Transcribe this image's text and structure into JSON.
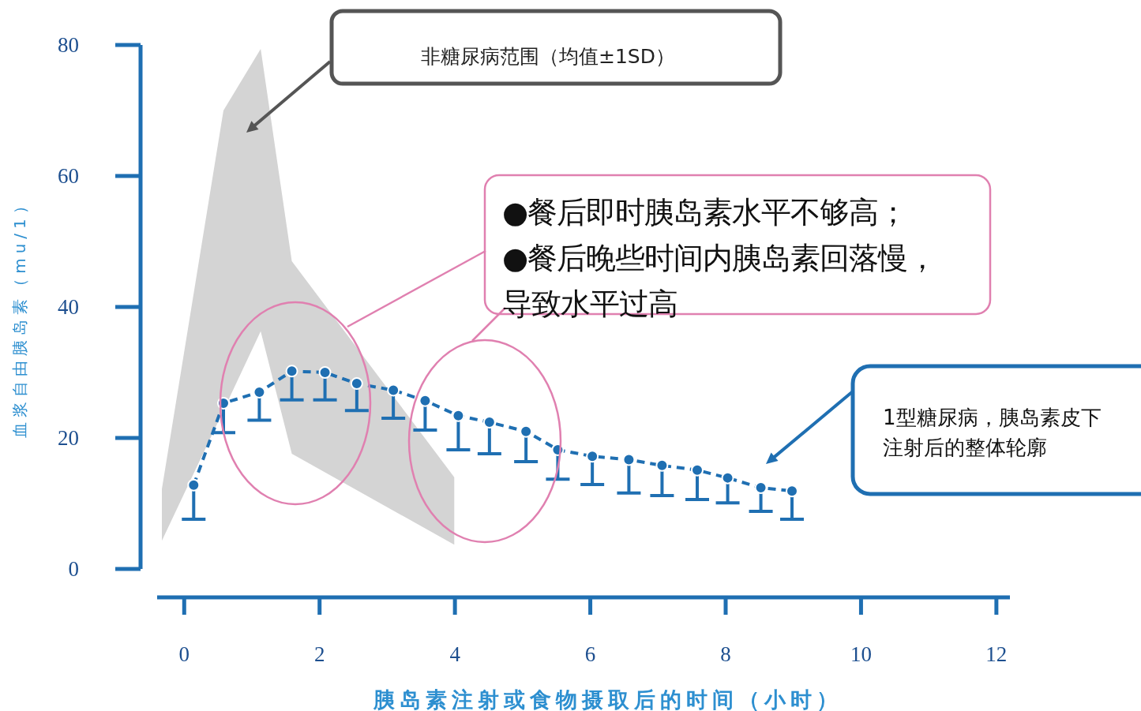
{
  "chart_data": {
    "type": "line",
    "xlabel": "胰岛素注射或食物摄取后的时间（小时）",
    "ylabel": "血浆自由胰岛素（mu/1）",
    "xlim": [
      -0.4,
      12.2
    ],
    "ylim": [
      0,
      80
    ],
    "xticks": [
      0,
      2,
      4,
      6,
      8,
      10,
      12
    ],
    "yticks": [
      0,
      20,
      40,
      60,
      80
    ],
    "marker": "circle",
    "line_style": "dashed",
    "series": [
      {
        "type": "area",
        "color": "#d4d4d4",
        "x": [
          -0.33,
          0.58,
          1.13,
          1.59,
          3.99
        ],
        "values": [
          null,
          null,
          null,
          null,
          null
        ],
        "lower": [
          4.3,
          24.2,
          36.3,
          17.6,
          3.7
        ],
        "upper": [
          12.2,
          70,
          79.4,
          47,
          14
        ]
      },
      {
        "color": "#1f6fb2",
        "x": [
          0.14,
          0.58,
          1.11,
          1.59,
          2.08,
          2.55,
          3.09,
          3.56,
          4.05,
          4.51,
          5.05,
          5.52,
          6.03,
          6.57,
          7.06,
          7.58,
          8.03,
          8.52,
          8.98
        ],
        "values": [
          12.8,
          25.3,
          27,
          30.2,
          30,
          28.3,
          27.3,
          25.7,
          23.4,
          22.4,
          21,
          18.2,
          17.2,
          16.7,
          15.8,
          15.1,
          13.9,
          12.4,
          11.9
        ],
        "errors": [
          [
            7.6,
            12.8
          ],
          [
            20.8,
            25.3
          ],
          [
            22.7,
            27
          ],
          [
            25.8,
            30.2
          ],
          [
            25.8,
            30
          ],
          [
            24.2,
            28.3
          ],
          [
            23,
            27.3
          ],
          [
            21.2,
            25.7
          ],
          [
            18.2,
            23.4
          ],
          [
            17.6,
            22.4
          ],
          [
            16.4,
            21
          ],
          [
            13.7,
            18.2
          ],
          [
            12.9,
            17.2
          ],
          [
            11.6,
            16.7
          ],
          [
            11.2,
            15.8
          ],
          [
            10.6,
            15.1
          ],
          [
            10.1,
            13.9
          ],
          [
            8.8,
            12.4
          ],
          [
            7.6,
            11.9
          ]
        ]
      }
    ],
    "annotations": [
      "非糖尿病范围（均值±1SD）",
      "●餐后即时胰岛素水平不够高；",
      "●餐后晚些时间内胰岛素回落慢，导致水平过高",
      "1型糖尿病，胰岛素皮下注射后的整体轮廓"
    ]
  }
}
